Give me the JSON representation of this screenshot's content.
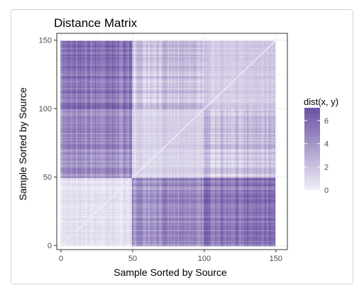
{
  "chart_data": {
    "type": "heatmap",
    "title": "Distance Matrix",
    "xlabel": "Sample Sorted by Source",
    "ylabel": "Sample Sorted by Source",
    "xlim": [
      -3,
      158
    ],
    "ylim": [
      -3,
      155
    ],
    "x_ticks": [
      0,
      50,
      100,
      150
    ],
    "y_ticks": [
      0,
      50,
      100,
      150
    ],
    "x_tick_labels": [
      "0",
      "50",
      "100",
      "150"
    ],
    "y_tick_labels": [
      "0",
      "50",
      "100",
      "150"
    ],
    "n_samples": 150,
    "groups": [
      {
        "start": 0,
        "end": 50
      },
      {
        "start": 50,
        "end": 100
      },
      {
        "start": 100,
        "end": 150
      }
    ],
    "block_mean_distance": [
      [
        0.5,
        4.3,
        5.3
      ],
      [
        4.3,
        1.3,
        2.0
      ],
      [
        5.3,
        2.0,
        1.6
      ]
    ],
    "legend": {
      "title": "dist(x, y)",
      "ticks": [
        0,
        2,
        4,
        6
      ],
      "tick_labels": [
        "0",
        "2",
        "4",
        "6"
      ],
      "range": [
        0,
        7.1
      ],
      "low_color": "#f0eef7",
      "high_color": "#6a51a3"
    },
    "grid": true,
    "panel_border_color": "#333333",
    "grid_color": "#ebebeb"
  }
}
